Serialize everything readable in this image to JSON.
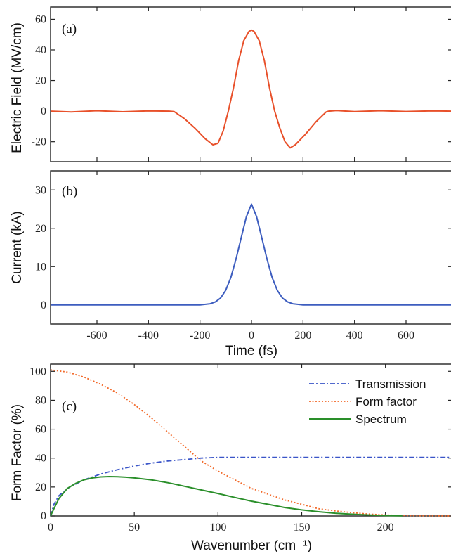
{
  "chart_data": [
    {
      "type": "line",
      "panel_label": "(a)",
      "ylabel": "Electric Field (MV/cm)",
      "xlim": [
        -780,
        780
      ],
      "ylim": [
        -33,
        68
      ],
      "xticks": [
        -600,
        -400,
        -200,
        0,
        200,
        400,
        600
      ],
      "yticks": [
        -20,
        0,
        20,
        40,
        60
      ],
      "ytick_labels": [
        "-20",
        "0",
        "20",
        "40",
        "60"
      ],
      "series": [
        {
          "color": "#e8502a",
          "style": "solid",
          "x": [
            -780,
            -700,
            -600,
            -500,
            -400,
            -320,
            -300,
            -260,
            -220,
            -180,
            -150,
            -130,
            -110,
            -90,
            -70,
            -50,
            -30,
            -10,
            0,
            10,
            30,
            50,
            70,
            90,
            110,
            130,
            150,
            170,
            210,
            250,
            290,
            300,
            330,
            400,
            500,
            600,
            700,
            780
          ],
          "y": [
            0,
            -0.5,
            0.3,
            -0.4,
            0.2,
            0,
            -0.3,
            -5,
            -11,
            -18,
            -22,
            -21,
            -13,
            0,
            15,
            33,
            46,
            52,
            53,
            52,
            46,
            33,
            15,
            0,
            -11,
            -20,
            -24,
            -22,
            -15,
            -7,
            -0.5,
            0,
            0.4,
            -0.3,
            0.3,
            -0.2,
            0.2,
            0
          ]
        }
      ]
    },
    {
      "type": "line",
      "panel_label": "(b)",
      "ylabel": "Current (kA)",
      "xlabel": "Time (fs)",
      "xlim": [
        -780,
        780
      ],
      "ylim": [
        -5,
        35
      ],
      "xticks": [
        -600,
        -400,
        -200,
        0,
        200,
        400,
        600
      ],
      "xtick_labels": [
        "-600",
        "-400",
        "-200",
        "0",
        "200",
        "400",
        "600"
      ],
      "yticks": [
        0,
        10,
        20,
        30
      ],
      "ytick_labels": [
        "0",
        "10",
        "20",
        "30"
      ],
      "series": [
        {
          "color": "#3d5dbf",
          "style": "solid",
          "x": [
            -780,
            -200,
            -160,
            -140,
            -120,
            -100,
            -80,
            -60,
            -40,
            -20,
            0,
            20,
            40,
            60,
            80,
            100,
            120,
            140,
            160,
            200,
            780
          ],
          "y": [
            0,
            0,
            0.3,
            0.8,
            1.8,
            3.8,
            7.2,
            12,
            17.5,
            23,
            26.3,
            23,
            17.5,
            12,
            7.2,
            3.8,
            1.8,
            0.8,
            0.3,
            0,
            0
          ]
        }
      ]
    },
    {
      "type": "line",
      "panel_label": "(c)",
      "ylabel": "Form Factor (%)",
      "xlabel": "Wavenumber (cm⁻¹)",
      "xlim": [
        0,
        240
      ],
      "ylim": [
        0,
        105
      ],
      "xticks": [
        0,
        50,
        100,
        150,
        200
      ],
      "xtick_labels": [
        "0",
        "50",
        "100",
        "150",
        "200"
      ],
      "yticks": [
        0,
        20,
        40,
        60,
        80,
        100
      ],
      "ytick_labels": [
        "0",
        "20",
        "40",
        "60",
        "80",
        "100"
      ],
      "legend_position": "top-right",
      "series": [
        {
          "name": "Transmission",
          "color": "#3a55c8",
          "style": "dash-dot",
          "x": [
            0,
            2,
            5,
            10,
            20,
            30,
            40,
            50,
            60,
            70,
            80,
            90,
            100,
            120,
            150,
            200,
            240
          ],
          "y": [
            0,
            8,
            14,
            19,
            25,
            29,
            32,
            34.5,
            36.5,
            38,
            39,
            40,
            40.5,
            40.5,
            40.5,
            40.5,
            40.5
          ]
        },
        {
          "name": "Form factor",
          "color": "#f26a2a",
          "style": "dotted",
          "x": [
            0,
            10,
            20,
            30,
            40,
            50,
            60,
            70,
            80,
            90,
            100,
            110,
            120,
            130,
            140,
            150,
            160,
            170,
            180,
            190,
            200,
            210,
            220,
            240
          ],
          "y": [
            101,
            99.5,
            96,
            91,
            85,
            77,
            68,
            58,
            48,
            38,
            31,
            25,
            19,
            15,
            11,
            8,
            5,
            3.5,
            2.3,
            1.3,
            0.7,
            0.4,
            0.2,
            0
          ]
        },
        {
          "name": "Spectrum",
          "color": "#2a8f2a",
          "style": "solid",
          "x": [
            0,
            2,
            5,
            10,
            15,
            20,
            25,
            30,
            35,
            40,
            45,
            50,
            60,
            70,
            80,
            90,
            100,
            110,
            120,
            130,
            140,
            150,
            160,
            170,
            180,
            190,
            200,
            210
          ],
          "y": [
            0,
            5,
            12,
            19,
            22.5,
            25,
            26.3,
            27,
            27.2,
            27.1,
            26.8,
            26.3,
            25,
            23,
            20.5,
            18,
            15.5,
            12.8,
            10.2,
            8,
            5.8,
            4.2,
            2.9,
            1.9,
            1.2,
            0.7,
            0.3,
            0.1
          ]
        }
      ]
    }
  ]
}
